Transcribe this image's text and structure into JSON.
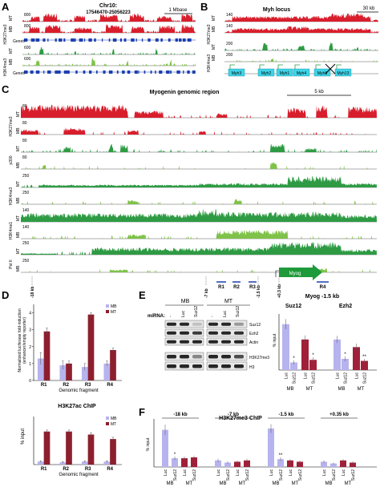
{
  "panels": {
    "A": "A",
    "B": "B",
    "C": "C",
    "D": "D",
    "E": "E",
    "F": "F"
  },
  "A": {
    "title": "Chr10:",
    "subtitle": "17546470-25056223",
    "scale": "1 Mbase",
    "tracks": [
      {
        "group": "H3K27me3",
        "cell": "MT",
        "max": "800"
      },
      {
        "group": "H3K27me3",
        "cell": "MB",
        "max": "800"
      },
      {
        "group": "H3K4me3",
        "cell": "MT",
        "max": "600"
      },
      {
        "group": "H3K4me3",
        "cell": "MB",
        "max": "600"
      }
    ],
    "genes_label": "Genes"
  },
  "B": {
    "title": "Myh locus",
    "scale": "30 kb",
    "tracks": [
      {
        "group": "H3K27me3",
        "cell": "MT",
        "max": "140"
      },
      {
        "group": "H3K27me3",
        "cell": "MB",
        "max": "140"
      },
      {
        "group": "H3K4me3",
        "cell": "MT",
        "max": "200"
      },
      {
        "group": "H3K4me3",
        "cell": "MB",
        "max": "200"
      }
    ],
    "genes": [
      "Myh3",
      "Myh2",
      "Myh1",
      "Myh4",
      "Myh8",
      "Myh13"
    ]
  },
  "C": {
    "title": "Myogenin genomic region",
    "scale": "5 kb",
    "tracks": [
      {
        "group": "H3K27me3",
        "cell": "MT",
        "max": "80"
      },
      {
        "group": "H3K27me3",
        "cell": "MB",
        "max": "80"
      },
      {
        "group": "p300",
        "cell": "MT",
        "max": "80"
      },
      {
        "group": "p300",
        "cell": "MB",
        "max": "80"
      },
      {
        "group": "H3K4me3",
        "cell": "MT",
        "max": "250"
      },
      {
        "group": "H3K4me3",
        "cell": "MB",
        "max": "250"
      },
      {
        "group": "H3K4me1",
        "cell": "MT",
        "max": "140"
      },
      {
        "group": "H3K4me1",
        "cell": "MB",
        "max": "140"
      },
      {
        "group": "Pol II",
        "cell": "MT",
        "max": "250"
      },
      {
        "group": "Pol II",
        "cell": "MB",
        "max": "250"
      }
    ],
    "positions": [
      "-18 kb",
      "-7 kb",
      "-1.5 kb",
      "+0.3 kb"
    ],
    "regions": [
      "R1",
      "R2",
      "R3",
      "R4"
    ],
    "gene": "Myog"
  },
  "D": {
    "top_ylabel_line1": "Normalized luciferase fold-induction",
    "top_ylabel_line2": "(enhancer/empty reporter)",
    "top_xlabel": "Genomic fragment",
    "top_yticks": [
      "0",
      "1",
      "2",
      "3",
      "4"
    ],
    "bottom_title": "H3K27ac ChIP",
    "bottom_ylabel": "% input",
    "bottom_xlabel": "Genomic fragment",
    "legend": [
      "MB",
      "MT"
    ]
  },
  "E": {
    "groups": [
      "MB",
      "MT"
    ],
    "mirna_label": "miRNA:",
    "lanes": [
      "-",
      "Luc",
      "Suz12",
      "-",
      "Luc",
      "Suz12"
    ],
    "blot_labels": [
      "Suz12",
      "Ezh2",
      "Actin",
      "H3K27me3",
      "H3"
    ],
    "chart_title": "Myog -1.5 kb",
    "subtitles": [
      "Suz12",
      "Ezh2"
    ],
    "ylabel": "% input",
    "cells": [
      "MB",
      "MT",
      "MB",
      "MT"
    ]
  },
  "F": {
    "title": "H3K27me3 ChIP",
    "ylabel": "% input",
    "regions": [
      "-18 kb",
      "-7 kb",
      "-1.5 kb",
      "+0.35 kb"
    ],
    "cells": [
      "MB",
      "MT"
    ]
  },
  "chart_data": [
    {
      "type": "bar",
      "panel": "D-top",
      "categories": [
        "R1",
        "R2",
        "R3",
        "R4"
      ],
      "series": [
        {
          "name": "MB",
          "values": [
            1.3,
            0.9,
            0.8,
            1.0
          ],
          "errors": [
            0.35,
            0.25,
            0.2,
            0.15
          ]
        },
        {
          "name": "MT",
          "values": [
            2.9,
            1.0,
            3.9,
            1.8
          ],
          "errors": [
            0.2,
            0.15,
            0.12,
            0.12
          ]
        }
      ],
      "ylim": [
        0,
        4.5
      ],
      "colors": {
        "MB": "#b7b3ee",
        "MT": "#8c1f2e"
      }
    },
    {
      "type": "bar",
      "panel": "D-bottom",
      "title": "H3K27ac ChIP",
      "categories": [
        "R1",
        "R2",
        "R3",
        "R4"
      ],
      "series": [
        {
          "name": "MB",
          "values": [
            0.2,
            0.15,
            0.2,
            0.2
          ],
          "errors": [
            0.05,
            0.05,
            0.05,
            0.05
          ]
        },
        {
          "name": "MT",
          "values": [
            2.2,
            2.2,
            2.0,
            1.7
          ],
          "errors": [
            0.1,
            0.1,
            0.12,
            0.12
          ]
        }
      ],
      "ylim": [
        0,
        3.2
      ],
      "colors": {
        "MB": "#b7b3ee",
        "MT": "#8c1f2e"
      }
    },
    {
      "type": "bar",
      "panel": "E",
      "title": "Myog -1.5 kb",
      "groups": [
        "Suz12",
        "Ezh2"
      ],
      "bars": [
        {
          "cell": "MB",
          "cond": "Luc",
          "value": 0.9,
          "err": 0.1
        },
        {
          "cell": "MB",
          "cond": "Suz12",
          "value": 0.15,
          "err": 0.04,
          "mark": "*"
        },
        {
          "cell": "MT",
          "cond": "Luc",
          "value": 0.6,
          "err": 0.08
        },
        {
          "cell": "MT",
          "cond": "Suz12",
          "value": 0.2,
          "err": 0.05,
          "mark": "*"
        },
        {
          "cell": "MB",
          "cond": "Luc",
          "value": 0.6,
          "err": 0.07
        },
        {
          "cell": "MB",
          "cond": "Suz12",
          "value": 0.22,
          "err": 0.05,
          "mark": "*"
        },
        {
          "cell": "MT",
          "cond": "Luc",
          "value": 0.45,
          "err": 0.07
        },
        {
          "cell": "MT",
          "cond": "Suz12",
          "value": 0.18,
          "err": 0.04,
          "mark": "**"
        }
      ],
      "ymax": 1.1,
      "colors": {
        "MB": "#b7b3ee",
        "MT": "#a0203a"
      }
    },
    {
      "type": "bar",
      "panel": "F",
      "title": "H3K27me3 ChIP",
      "groups": [
        "-18 kb",
        "-7 kb",
        "-1.5 kb",
        "+0.35 kb"
      ],
      "bars": [
        [
          {
            "cell": "MB",
            "cond": "Luc",
            "value": 0.85,
            "err": 0.12
          },
          {
            "cell": "MB",
            "cond": "Suz12",
            "value": 0.2,
            "err": 0.04,
            "mark": "*"
          },
          {
            "cell": "MT",
            "cond": "Luc",
            "value": 0.2,
            "err": 0.04
          },
          {
            "cell": "MT",
            "cond": "Suz12",
            "value": 0.22,
            "err": 0.04
          }
        ],
        [
          {
            "cell": "MB",
            "cond": "Luc",
            "value": 0.15,
            "err": 0.04
          },
          {
            "cell": "MB",
            "cond": "Suz12",
            "value": 0.1,
            "err": 0.03
          },
          {
            "cell": "MT",
            "cond": "Luc",
            "value": 0.12,
            "err": 0.03
          },
          {
            "cell": "MT",
            "cond": "Suz12",
            "value": 0.15,
            "err": 0.04
          }
        ],
        [
          {
            "cell": "MB",
            "cond": "Luc",
            "value": 0.88,
            "err": 0.1
          },
          {
            "cell": "MB",
            "cond": "Suz12",
            "value": 0.18,
            "err": 0.04,
            "mark": "**"
          },
          {
            "cell": "MT",
            "cond": "Luc",
            "value": 0.15,
            "err": 0.03
          },
          {
            "cell": "MT",
            "cond": "Suz12",
            "value": 0.12,
            "err": 0.03
          }
        ],
        [
          {
            "cell": "MB",
            "cond": "Luc",
            "value": 0.12,
            "err": 0.03
          },
          {
            "cell": "MB",
            "cond": "Suz12",
            "value": 0.08,
            "err": 0.02
          },
          {
            "cell": "MT",
            "cond": "Luc",
            "value": 0.15,
            "err": 0.03
          },
          {
            "cell": "MT",
            "cond": "Suz12",
            "value": 0.1,
            "err": 0.03
          }
        ]
      ],
      "ymax": 1.1,
      "colors": {
        "MB": "#b7b3ee",
        "MT": "#a0203a"
      }
    }
  ]
}
